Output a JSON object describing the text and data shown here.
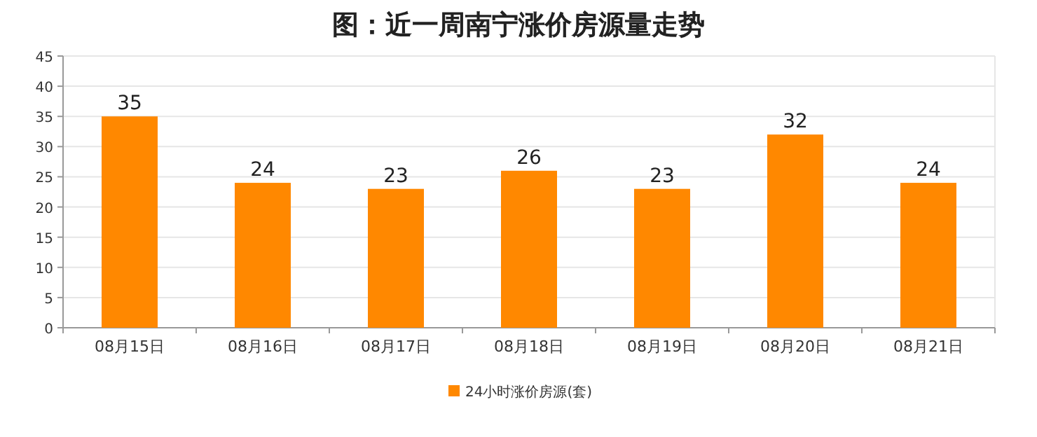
{
  "chart_data": {
    "type": "bar",
    "title": "图：近一周南宁涨价房源量走势",
    "categories": [
      "08月15日",
      "08月16日",
      "08月17日",
      "08月18日",
      "08月19日",
      "08月20日",
      "08月21日"
    ],
    "series": [
      {
        "name": "24小时涨价房源(套)",
        "color": "#ff8800",
        "values": [
          35,
          24,
          23,
          26,
          23,
          32,
          24
        ]
      }
    ],
    "ylim": [
      0,
      45
    ],
    "yticks": [
      0,
      5,
      10,
      15,
      20,
      25,
      30,
      35,
      40,
      45
    ],
    "grid": "y",
    "legend": "bottom",
    "data_labels": true
  }
}
